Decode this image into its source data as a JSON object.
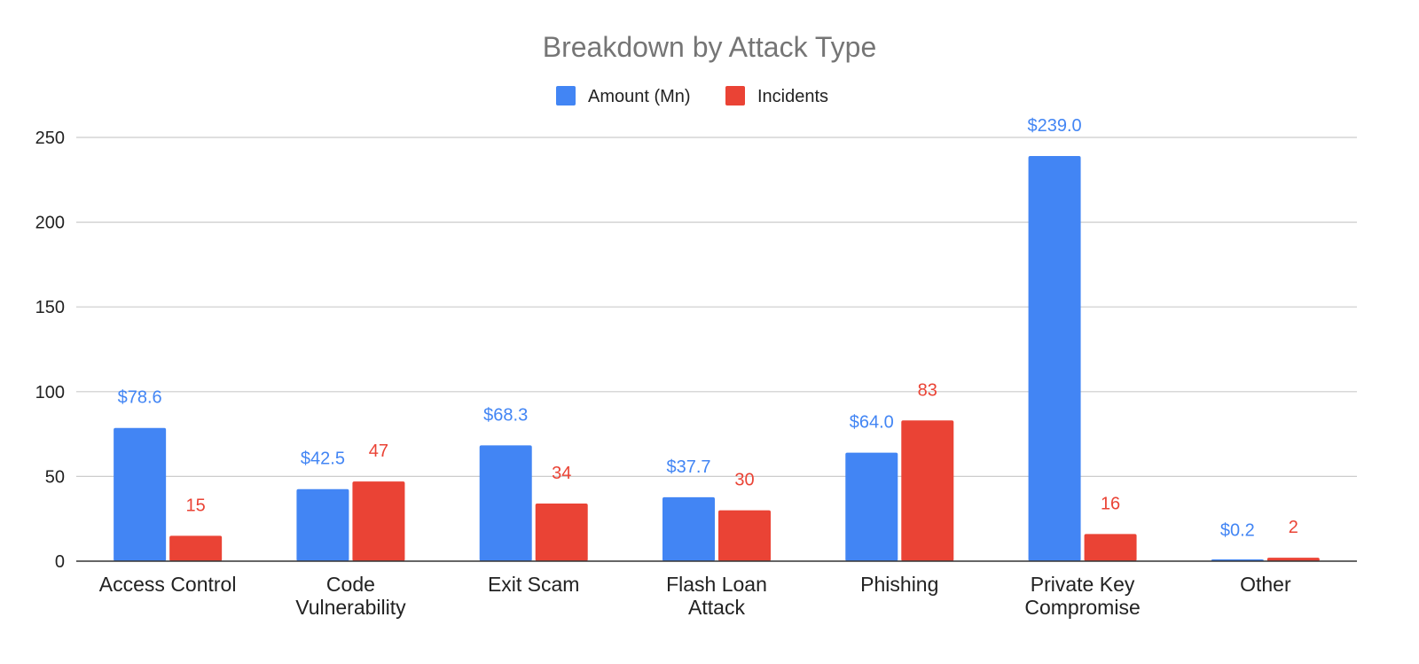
{
  "chart_data": {
    "type": "bar",
    "title": "Breakdown by Attack Type",
    "xlabel": "",
    "ylabel": "",
    "ylim": [
      0,
      250
    ],
    "yticks": [
      0,
      50,
      100,
      150,
      200,
      250
    ],
    "grid": true,
    "legend_position": "top",
    "categories": [
      [
        "Access Control"
      ],
      [
        "Code",
        "Vulnerability"
      ],
      [
        "Exit Scam"
      ],
      [
        "Flash Loan",
        "Attack"
      ],
      [
        "Phishing"
      ],
      [
        "Private Key",
        "Compromise"
      ],
      [
        "Other"
      ]
    ],
    "series": [
      {
        "name": "Amount (Mn)",
        "color": "#4285f4",
        "values": [
          78.6,
          42.5,
          68.3,
          37.7,
          64.0,
          239.0,
          0.2
        ],
        "labels": [
          "$78.6",
          "$42.5",
          "$68.3",
          "$37.7",
          "$64.0",
          "$239.0",
          "$0.2"
        ]
      },
      {
        "name": "Incidents",
        "color": "#ea4335",
        "values": [
          15,
          47,
          34,
          30,
          83,
          16,
          2
        ],
        "labels": [
          "15",
          "47",
          "34",
          "30",
          "83",
          "16",
          "2"
        ]
      }
    ]
  }
}
